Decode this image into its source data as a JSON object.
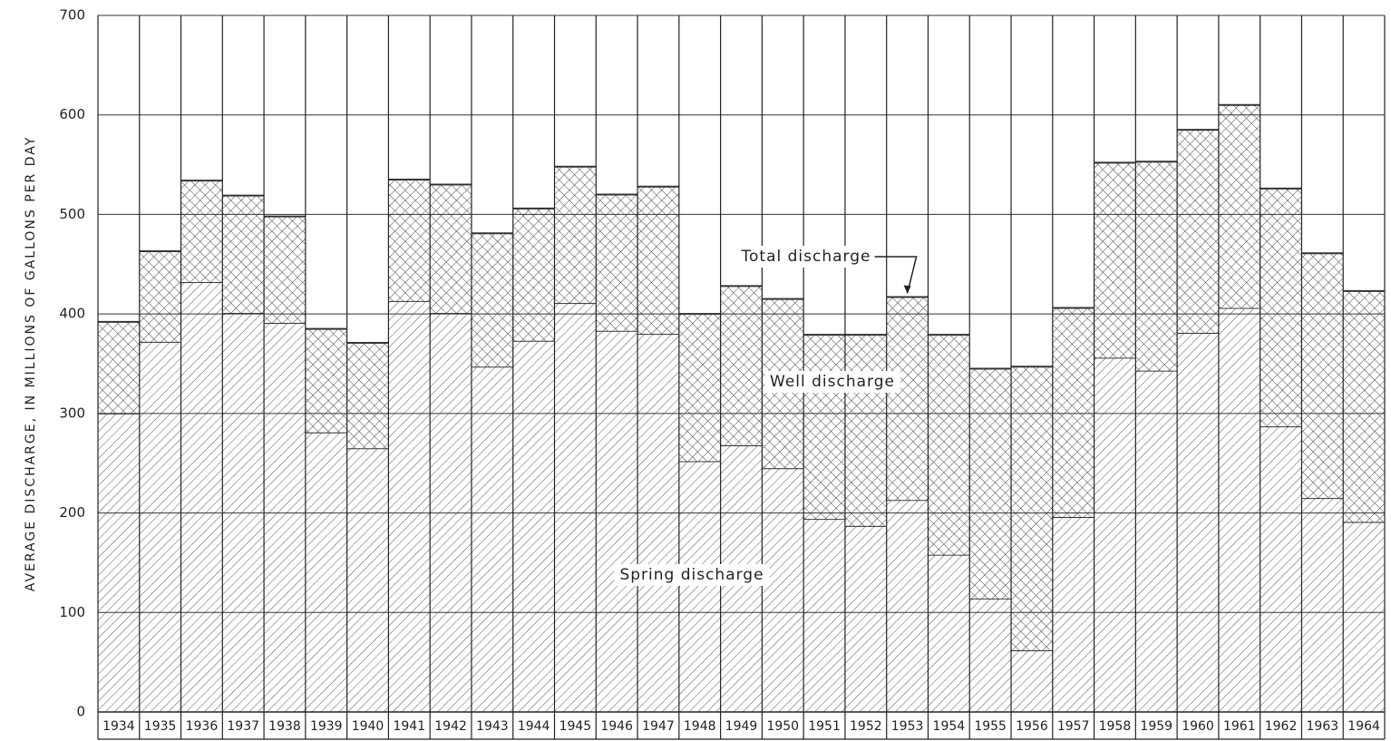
{
  "chart_data": {
    "type": "stacked_bar",
    "y_label": "AVERAGE DISCHARGE, IN MILLIONS OF GALLONS PER DAY",
    "categories": [
      "1934",
      "1935",
      "1936",
      "1937",
      "1938",
      "1939",
      "1940",
      "1941",
      "1942",
      "1943",
      "1944",
      "1945",
      "1946",
      "1947",
      "1948",
      "1949",
      "1950",
      "1951",
      "1952",
      "1953",
      "1954",
      "1955",
      "1956",
      "1957",
      "1958",
      "1959",
      "1960",
      "1961",
      "1962",
      "1963",
      "1964"
    ],
    "series": [
      {
        "name": "Spring discharge",
        "color": "#333333",
        "pattern": "diagonal",
        "values": [
          300,
          372,
          432,
          401,
          391,
          281,
          265,
          413,
          401,
          347,
          373,
          411,
          383,
          380,
          252,
          268,
          245,
          194,
          187,
          213,
          158,
          114,
          62,
          196,
          356,
          343,
          381,
          406,
          287,
          215,
          191
        ]
      },
      {
        "name": "Well discharge",
        "color": "#333333",
        "pattern": "crosshatch",
        "values": [
          92,
          91,
          102,
          118,
          107,
          104,
          106,
          122,
          129,
          134,
          133,
          137,
          137,
          148,
          148,
          160,
          170,
          185,
          192,
          204,
          221,
          231,
          285,
          210,
          196,
          210,
          204,
          204,
          239,
          246,
          232
        ]
      }
    ],
    "annotation": "Total discharge",
    "ylim": [
      0,
      700
    ],
    "yticks": [
      0,
      100,
      200,
      300,
      400,
      500,
      600,
      700
    ],
    "grid": true
  }
}
